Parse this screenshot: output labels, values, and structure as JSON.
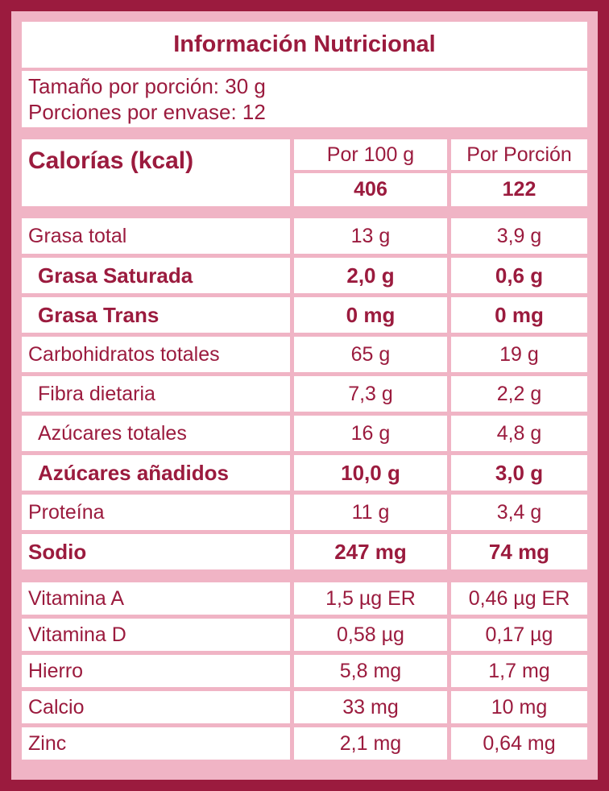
{
  "colors": {
    "maroon": "#9B1B3E",
    "pink": "#F0B4C5",
    "cell_background": "#FFFFFF"
  },
  "header": {
    "title": "Información Nutricional",
    "serving_size": "Tamaño por porción: 30 g",
    "servings_per_container": "Porciones por envase: 12"
  },
  "calories": {
    "label": "Calorías (kcal)",
    "col_per_100g": "Por 100 g",
    "col_per_serving": "Por Porción",
    "per_100g": "406",
    "per_serving": "122"
  },
  "nutrients": [
    {
      "label": "Grasa total",
      "per_100g": "13 g",
      "per_serving": "3,9 g",
      "bold": false,
      "indent": false
    },
    {
      "label": "Grasa Saturada",
      "per_100g": "2,0 g",
      "per_serving": "0,6 g",
      "bold": true,
      "indent": true
    },
    {
      "label": "Grasa Trans",
      "per_100g": "0 mg",
      "per_serving": "0 mg",
      "bold": true,
      "indent": true
    },
    {
      "label": "Carbohidratos totales",
      "per_100g": "65 g",
      "per_serving": "19 g",
      "bold": false,
      "indent": false
    },
    {
      "label": "Fibra dietaria",
      "per_100g": "7,3 g",
      "per_serving": "2,2 g",
      "bold": false,
      "indent": true
    },
    {
      "label": "Azúcares totales",
      "per_100g": "16 g",
      "per_serving": "4,8 g",
      "bold": false,
      "indent": true
    },
    {
      "label": "Azúcares añadidos",
      "per_100g": "10,0 g",
      "per_serving": "3,0 g",
      "bold": true,
      "indent": true
    },
    {
      "label": "Proteína",
      "per_100g": "11 g",
      "per_serving": "3,4 g",
      "bold": false,
      "indent": false
    },
    {
      "label": "Sodio",
      "per_100g": "247 mg",
      "per_serving": "74 mg",
      "bold": true,
      "indent": false
    }
  ],
  "micronutrients": [
    {
      "label": "Vitamina A",
      "per_100g": "1,5 µg ER",
      "per_serving": "0,46 µg ER",
      "bold": false,
      "indent": false
    },
    {
      "label": "Vitamina D",
      "per_100g": "0,58 µg",
      "per_serving": "0,17 µg",
      "bold": false,
      "indent": false
    },
    {
      "label": "Hierro",
      "per_100g": "5,8 mg",
      "per_serving": "1,7 mg",
      "bold": false,
      "indent": false
    },
    {
      "label": "Calcio",
      "per_100g": "33 mg",
      "per_serving": "10 mg",
      "bold": false,
      "indent": false
    },
    {
      "label": "Zinc",
      "per_100g": "2,1 mg",
      "per_serving": "0,64 mg",
      "bold": false,
      "indent": false
    }
  ]
}
